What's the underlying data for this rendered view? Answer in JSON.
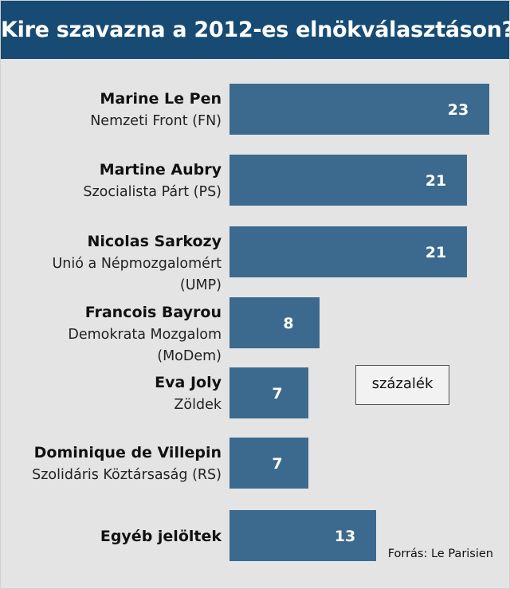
{
  "title": "Kire szavazna a 2012-es elnökválasztáson?",
  "unit": "százalék",
  "source": "Forrás: Le Parisien",
  "colors": {
    "header": "#174b73",
    "bar": "#3c6a8e",
    "background": "#e4e4e4"
  },
  "chart_data": {
    "type": "bar",
    "orientation": "horizontal",
    "title": "Kire szavazna a 2012-es elnökválasztáson?",
    "unit_label": "százalék",
    "categories": [
      {
        "name": "Marine Le Pen",
        "party": [
          "Nemzeti Front (FN)"
        ]
      },
      {
        "name": "Martine Aubry",
        "party": [
          "Szocialista Párt (PS)"
        ]
      },
      {
        "name": "Nicolas Sarkozy",
        "party": [
          "Unió a Népmozgalomért",
          "(UMP)"
        ]
      },
      {
        "name": "Francois Bayrou",
        "party": [
          "Demokrata Mozgalom",
          "(MoDem)"
        ]
      },
      {
        "name": "Eva Joly",
        "party": [
          "Zöldek"
        ]
      },
      {
        "name": "Dominique de Villepin",
        "party": [
          "Szolidáris Köztársaság (RS)"
        ]
      },
      {
        "name": "Egyéb jelöltek",
        "party": []
      }
    ],
    "values": [
      23,
      21,
      21,
      8,
      7,
      7,
      13
    ],
    "data_labels": [
      "23",
      "21",
      "21",
      "8",
      "7",
      "7",
      "13"
    ],
    "xlim": [
      0,
      23
    ],
    "grid": false,
    "legend": "none"
  }
}
